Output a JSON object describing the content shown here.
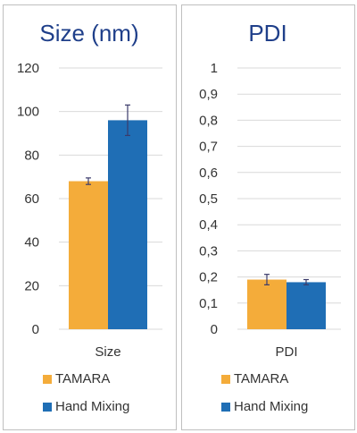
{
  "chart_data": [
    {
      "type": "bar",
      "title": "Size (nm)",
      "categories": [
        "Size"
      ],
      "series": [
        {
          "name": "TAMARA",
          "values": [
            68
          ],
          "error": [
            1.5
          ],
          "color": "#f4ac3a"
        },
        {
          "name": "Hand Mixing",
          "values": [
            96
          ],
          "error": [
            7
          ],
          "color": "#1f6eb5"
        }
      ],
      "ylim": [
        0,
        120
      ],
      "yticks": [
        "0",
        "20",
        "40",
        "60",
        "80",
        "100",
        "120"
      ],
      "grid": true,
      "legend_position": "bottom"
    },
    {
      "type": "bar",
      "title": "PDI",
      "categories": [
        "PDI"
      ],
      "series": [
        {
          "name": "TAMARA",
          "values": [
            0.19
          ],
          "error": [
            0.02
          ],
          "color": "#f4ac3a"
        },
        {
          "name": "Hand Mixing",
          "values": [
            0.18
          ],
          "error": [
            0.01
          ],
          "color": "#1f6eb5"
        }
      ],
      "ylim": [
        0,
        1
      ],
      "yticks": [
        "0",
        "0,1",
        "0,2",
        "0,3",
        "0,4",
        "0,5",
        "0,6",
        "0,7",
        "0,8",
        "0,9",
        "1"
      ],
      "grid": true,
      "legend_position": "bottom"
    }
  ]
}
